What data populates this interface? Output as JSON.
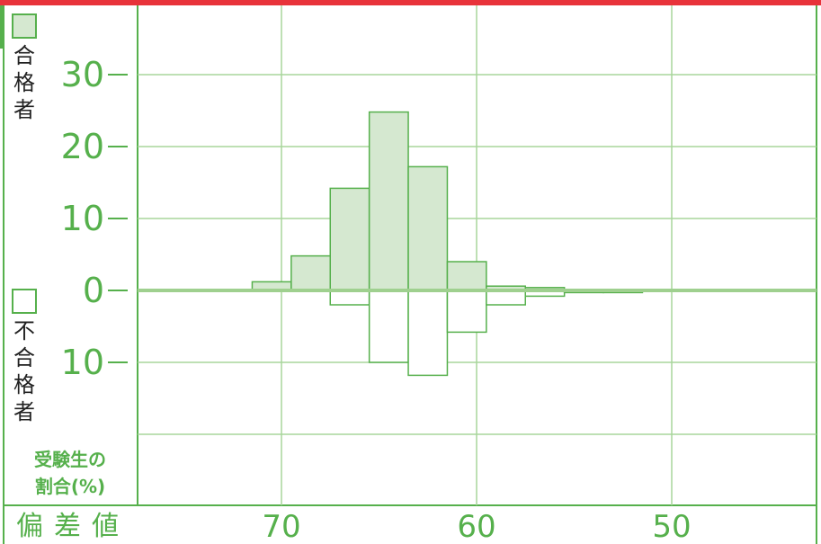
{
  "colors": {
    "accent_red": "#e8333a",
    "green_line": "#56b04c",
    "grid": "#a8d59c",
    "pass_fill": "#d5e8d0",
    "fail_fill": "#ffffff",
    "text_dark": "#222222"
  },
  "legend": {
    "pass_label": "合格者",
    "fail_label": "不合格者"
  },
  "note": {
    "line1": "受験生の",
    "line2": "割合(%)"
  },
  "chart_data": {
    "type": "bar",
    "xlabel": "偏差値",
    "ylabel": "受験生の割合(%)",
    "x_ticks": [
      "70",
      "60",
      "50"
    ],
    "y_ticks_pass": [
      "30",
      "20",
      "10",
      "0"
    ],
    "y_ticks_fail": [
      "10"
    ],
    "bin_width": 2,
    "x_reversed": true,
    "bins_center": [
      70.5,
      68.5,
      66.5,
      64.5,
      62.5,
      60.5,
      58.5,
      56.5,
      54.5,
      52.5
    ],
    "series": [
      {
        "name": "合格者",
        "values": [
          1.2,
          4.8,
          14.2,
          24.8,
          17.2,
          4.0,
          0.6,
          0.4,
          0.0,
          0.0
        ]
      },
      {
        "name": "不合格者",
        "values": [
          0.0,
          0.0,
          2.0,
          10.0,
          11.8,
          5.8,
          2.0,
          0.8,
          0.3,
          0.3
        ]
      }
    ],
    "ylim_pass": [
      0,
      30
    ],
    "ylim_fail": [
      0,
      10
    ],
    "grid": true
  }
}
